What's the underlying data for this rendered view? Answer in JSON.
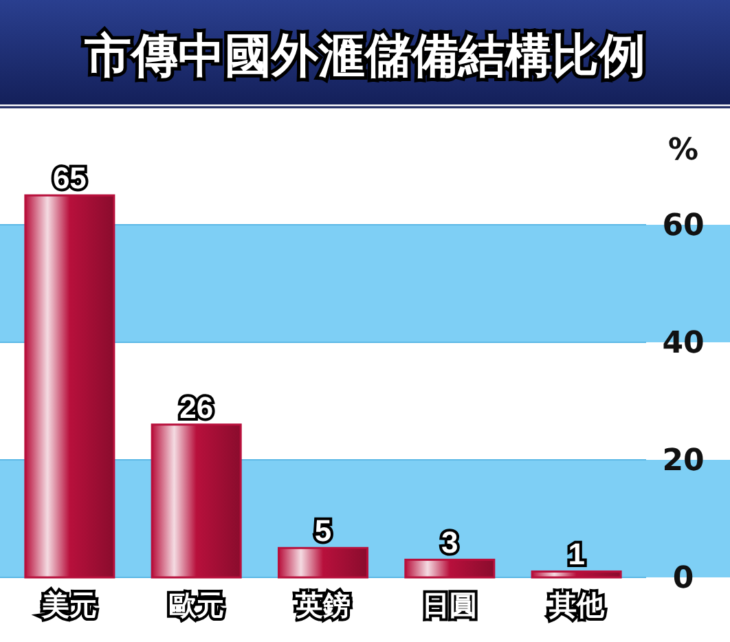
{
  "chart_data": {
    "type": "bar",
    "title": "市傳中國外滙儲備結構比例",
    "ylabel": "%",
    "categories": [
      "美元",
      "歐元",
      "英鎊",
      "日圓",
      "其他"
    ],
    "values": [
      65,
      26,
      5,
      3,
      1
    ],
    "color": "#b8103c",
    "bands": [
      {
        "axis": "y",
        "from": 0,
        "to": 20,
        "color": "#7ecff5"
      },
      {
        "axis": "y",
        "from": 40,
        "to": 60,
        "color": "#7ecff5"
      }
    ],
    "ylim": [
      0,
      80
    ],
    "yticks": [
      0,
      20,
      40,
      60
    ],
    "grid": true,
    "data_labels": true
  }
}
